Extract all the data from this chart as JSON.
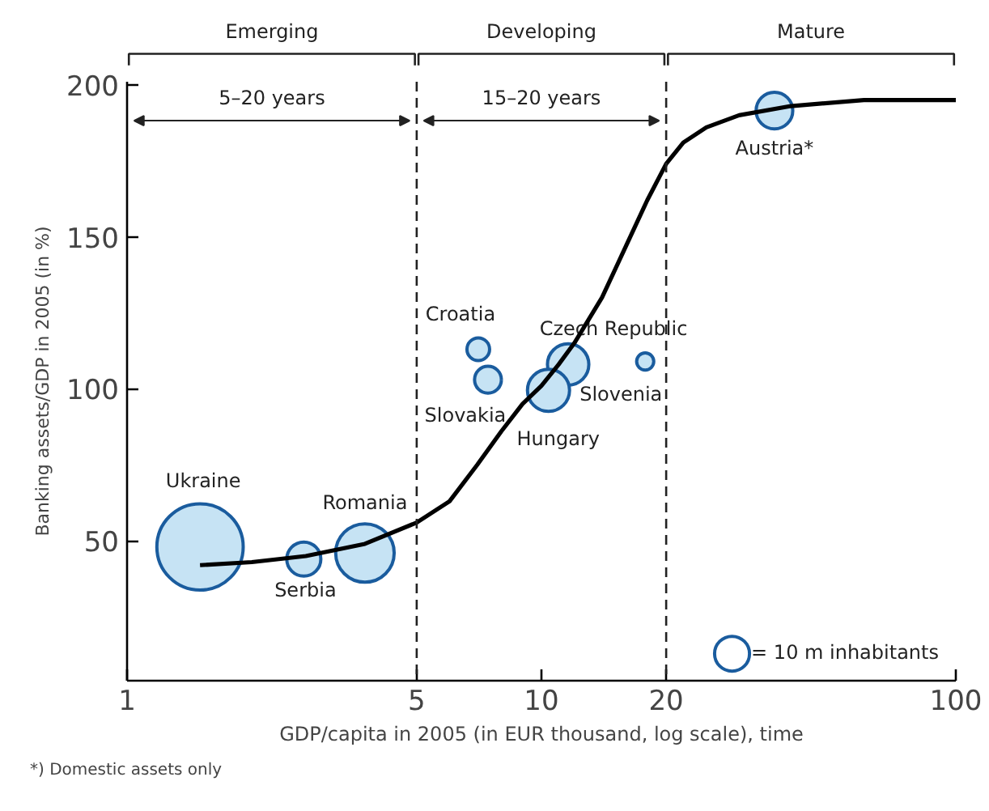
{
  "chart_data": {
    "type": "bubble",
    "xlabel": "GDP/capita in 2005 (in EUR thousand, log scale), time",
    "ylabel": "Banking assets/GDP in 2005 (in %)",
    "log": "x",
    "grid": false,
    "xlim": [
      1,
      100
    ],
    "xticks": [
      1,
      5,
      10,
      20,
      100
    ],
    "ylim": [
      4,
      201
    ],
    "yticks": [
      50,
      100,
      150,
      200
    ],
    "size_legend": [
      {
        "value": 10,
        "label": "= 10 m inhabitants"
      }
    ],
    "ref_lines": [
      {
        "axis": "x",
        "value": 5,
        "line_style": "dashed"
      },
      {
        "axis": "x",
        "value": 20,
        "line_style": "dashed"
      }
    ],
    "annotations": [
      "Emerging",
      "Developing",
      "Mature",
      "5–20 years",
      "15–20 years",
      "*) Domestic assets only"
    ],
    "series": [
      {
        "name": "Ukraine",
        "color": "#c6e3f4",
        "x": [
          1.5
        ],
        "values": [
          48
        ],
        "sizes": [
          61
        ]
      },
      {
        "name": "Serbia",
        "color": "#c6e3f4",
        "x": [
          2.67
        ],
        "values": [
          44
        ],
        "sizes": [
          9.5
        ]
      },
      {
        "name": "Romania",
        "color": "#c6e3f4",
        "x": [
          3.75
        ],
        "values": [
          46
        ],
        "sizes": [
          28
        ]
      },
      {
        "name": "Croatia",
        "color": "#c6e3f4",
        "x": [
          7.04
        ],
        "values": [
          113
        ],
        "sizes": [
          4.2
        ]
      },
      {
        "name": "Slovakia",
        "color": "#c6e3f4",
        "x": [
          7.43
        ],
        "values": [
          103
        ],
        "sizes": [
          5.9
        ]
      },
      {
        "name": "Czech Republic",
        "color": "#c6e3f4",
        "x": [
          11.6
        ],
        "values": [
          108
        ],
        "sizes": [
          14
        ]
      },
      {
        "name": "Slovenia",
        "color": "#c6e3f4",
        "x": [
          17.8
        ],
        "values": [
          109
        ],
        "sizes": [
          2.4
        ]
      },
      {
        "name": "Hungary",
        "color": "#c6e3f4",
        "x": [
          10.4
        ],
        "values": [
          99.5
        ],
        "sizes": [
          14.5
        ]
      },
      {
        "name": "Austria*",
        "color": "#c6e3f4",
        "x": [
          36.5
        ],
        "values": [
          191.5
        ],
        "sizes": [
          11
        ]
      },
      {
        "type": "line",
        "color": "#000000",
        "x": [
          1.5,
          2,
          2.7,
          3.75,
          5,
          6,
          7,
          8,
          9,
          10,
          11,
          12,
          14,
          16,
          18,
          20,
          22,
          25,
          30,
          40,
          60,
          100
        ],
        "values": [
          42,
          43,
          45,
          49,
          56,
          63,
          75,
          86,
          95,
          101,
          108,
          115,
          130,
          147,
          162,
          174,
          181,
          186,
          190,
          193,
          195,
          195
        ]
      }
    ]
  }
}
